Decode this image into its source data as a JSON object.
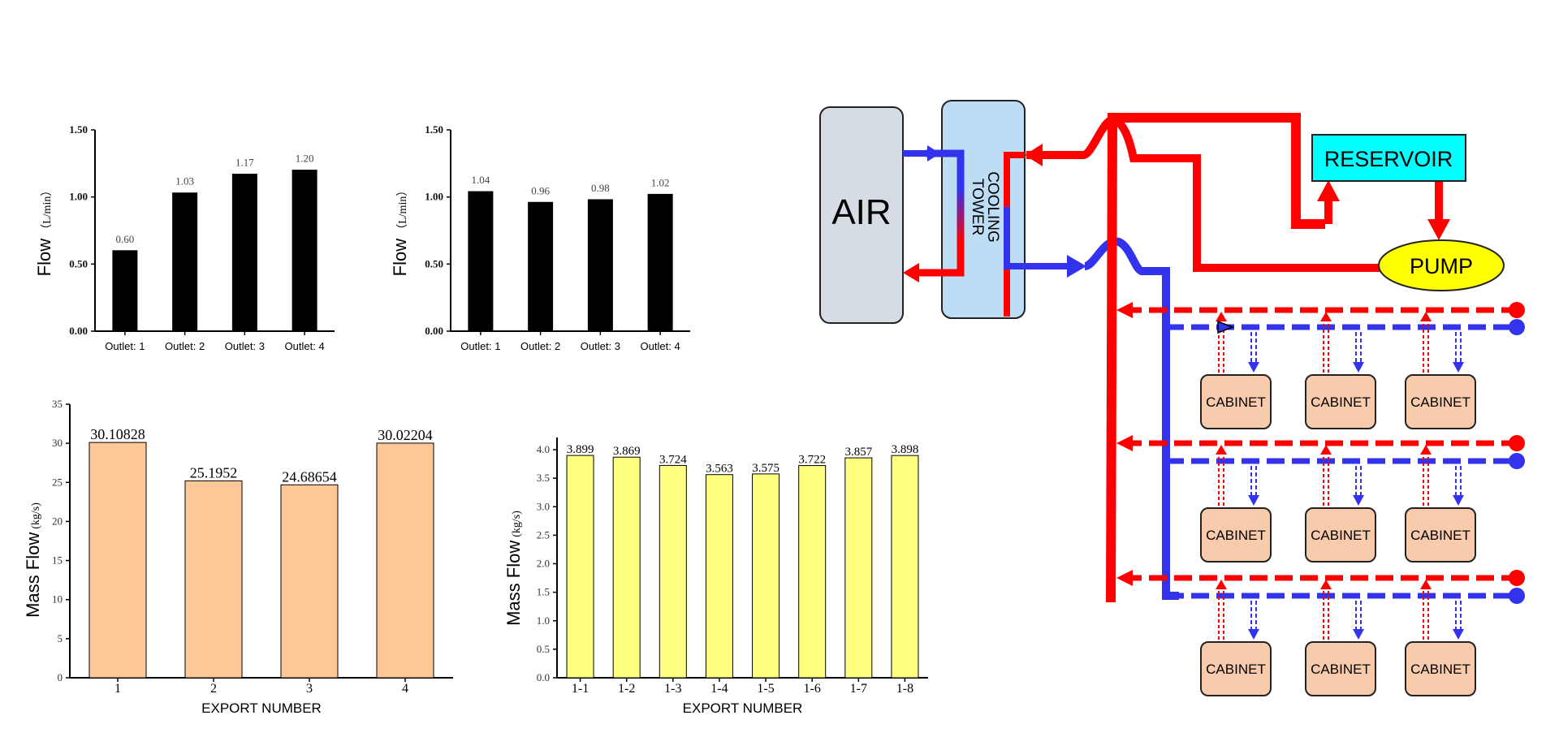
{
  "chart_data": [
    {
      "id": "c1",
      "type": "bar",
      "categories": [
        "Outlet: 1",
        "Outlet: 2",
        "Outlet: 3",
        "Outlet: 4"
      ],
      "values": [
        0.6,
        1.03,
        1.17,
        1.2
      ],
      "data_labels": [
        "0.60",
        "1.03",
        "1.17",
        "1.20"
      ],
      "ylabel": "Flow",
      "ylabel_unit": "（L/min）",
      "xlabel": "",
      "ylim": [
        0,
        1.5
      ],
      "yticks": [
        "0.00",
        "0.50",
        "1.00",
        "1.50"
      ],
      "ytick_values": [
        0,
        0.5,
        1.0,
        1.5
      ],
      "bar_color": "#000000"
    },
    {
      "id": "c2",
      "type": "bar",
      "categories": [
        "Outlet: 1",
        "Outlet: 2",
        "Outlet: 3",
        "Outlet: 4"
      ],
      "values": [
        1.04,
        0.96,
        0.98,
        1.02
      ],
      "data_labels": [
        "1.04",
        "0.96",
        "0.98",
        "1.02"
      ],
      "ylabel": "Flow",
      "ylabel_unit": "（L/min）",
      "xlabel": "",
      "ylim": [
        0,
        1.5
      ],
      "yticks": [
        "0.00",
        "0.50",
        "1.00",
        "1.50"
      ],
      "ytick_values": [
        0,
        0.5,
        1.0,
        1.5
      ],
      "bar_color": "#000000"
    },
    {
      "id": "c3",
      "type": "bar",
      "categories": [
        "1",
        "2",
        "3",
        "4"
      ],
      "values": [
        30.10828,
        25.1952,
        24.68654,
        30.02204
      ],
      "data_labels": [
        "30.10828",
        "25.1952",
        "24.68654",
        "30.02204"
      ],
      "ylabel": "Mass Flow",
      "ylabel_unit": "(kg/s)",
      "xlabel": "EXPORT NUMBER",
      "ylim": [
        0,
        35
      ],
      "yticks": [
        "0",
        "5",
        "10",
        "15",
        "20",
        "25",
        "30",
        "35"
      ],
      "ytick_values": [
        0,
        5,
        10,
        15,
        20,
        25,
        30,
        35
      ],
      "bar_color": "#FDC797"
    },
    {
      "id": "c4",
      "type": "bar",
      "categories": [
        "1-1",
        "1-2",
        "1-3",
        "1-4",
        "1-5",
        "1-6",
        "1-7",
        "1-8"
      ],
      "values": [
        3.899,
        3.869,
        3.724,
        3.563,
        3.575,
        3.722,
        3.857,
        3.898
      ],
      "data_labels": [
        "3.899",
        "3.869",
        "3.724",
        "3.563",
        "3.575",
        "3.722",
        "3.857",
        "3.898"
      ],
      "ylabel": "Mass Flow",
      "ylabel_unit": "(kg/s)",
      "xlabel": "EXPORT NUMBER",
      "ylim": [
        0,
        4.1
      ],
      "yticks": [
        "0.0",
        "0.5",
        "1.0",
        "1.5",
        "2.0",
        "2.5",
        "3.0",
        "3.5",
        "4.0"
      ],
      "ytick_values": [
        0,
        0.5,
        1.0,
        1.5,
        2.0,
        2.5,
        3.0,
        3.5,
        4.0
      ],
      "bar_color": "#FFFF80"
    }
  ],
  "diagram": {
    "air_label": "AIR",
    "cooling_tower_label_1": "COOLING",
    "cooling_tower_label_2": "TOWER",
    "reservoir_label": "RESERVOIR",
    "pump_label": "PUMP",
    "cabinet_label": "CABINET",
    "colors": {
      "hot": "#FF0000",
      "cold": "#3333EE",
      "air_box": "#D6DCE4",
      "tower_box": "#BDDDF4",
      "reservoir": "#00FFFF",
      "pump": "#FFFF00",
      "cabinet": "#F8CBAD"
    }
  }
}
